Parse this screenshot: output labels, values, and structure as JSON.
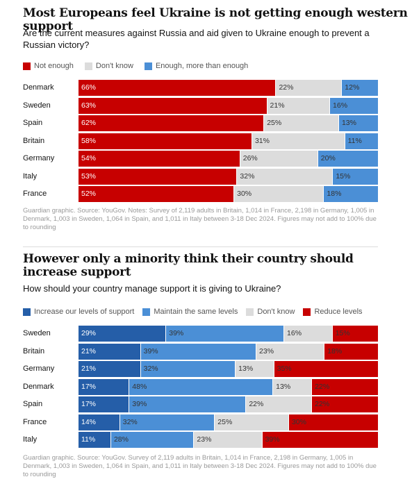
{
  "colors": {
    "not_enough": "#c70000",
    "dont_know": "#dcdcdc",
    "enough": "#4b8fd6",
    "increase": "#255ea8",
    "maintain": "#4b8fd6",
    "reduce": "#c70000"
  },
  "chart1": {
    "title": "Most Europeans feel Ukraine is not getting enough western support",
    "subtitle": "Are the current measures against Russia and aid given to Ukraine enough to prevent a Russian victory?",
    "legend": [
      "Not enough",
      "Don't know",
      "Enough, more than enough"
    ],
    "source": "Guardian graphic. Source: YouGov. Notes: Survey of 2,119 adults in Britain, 1,014 in France, 2,198 in Germany, 1,005 in Denmark, 1,003 in Sweden, 1,064 in Spain, and 1,011 in Italy between 3-18 Dec 2024. Figures may not add to 100% due to rounding"
  },
  "chart2": {
    "title": "However only a minority think their country should increase support",
    "subtitle": "How should your country manage support it is giving to Ukraine?",
    "legend": [
      "Increase our levels of support",
      "Maintain the same levels",
      "Don't know",
      "Reduce levels"
    ],
    "source": "Guardian graphic. Source: YouGov. Survey of 2,119 adults in Britain, 1,014 in France, 2,198 in Germany, 1,005 in Denmark, 1,003 in Sweden, 1,064 in Spain, and 1,011 in Italy between 3-18 Dec 2024. Figures may not add to 100% due to rounding"
  },
  "chart_data": [
    {
      "type": "bar",
      "orientation": "horizontal",
      "stacked": true,
      "title": "Most Europeans feel Ukraine is not getting enough western support",
      "subtitle": "Are the current measures against Russia and aid given to Ukraine enough to prevent a Russian victory?",
      "categories": [
        "Denmark",
        "Sweden",
        "Spain",
        "Britain",
        "Germany",
        "Italy",
        "France"
      ],
      "series": [
        {
          "name": "Not enough",
          "values": [
            66,
            63,
            62,
            58,
            54,
            53,
            52
          ]
        },
        {
          "name": "Don't know",
          "values": [
            22,
            21,
            25,
            31,
            26,
            32,
            30
          ]
        },
        {
          "name": "Enough, more than enough",
          "values": [
            12,
            16,
            13,
            11,
            20,
            15,
            18
          ]
        }
      ],
      "unit": "%",
      "legend_position": "top"
    },
    {
      "type": "bar",
      "orientation": "horizontal",
      "stacked": true,
      "title": "However only a minority think their country should increase support",
      "subtitle": "How should your country manage support it is giving to Ukraine?",
      "categories": [
        "Sweden",
        "Britain",
        "Germany",
        "Denmark",
        "Spain",
        "France",
        "Italy"
      ],
      "series": [
        {
          "name": "Increase our levels of support",
          "values": [
            29,
            21,
            21,
            17,
            17,
            14,
            11
          ]
        },
        {
          "name": "Maintain the same levels",
          "values": [
            39,
            39,
            32,
            48,
            39,
            32,
            28
          ]
        },
        {
          "name": "Don't know",
          "values": [
            16,
            23,
            13,
            13,
            22,
            25,
            23
          ]
        },
        {
          "name": "Reduce levels",
          "values": [
            15,
            18,
            35,
            22,
            22,
            30,
            39
          ]
        }
      ],
      "unit": "%",
      "legend_position": "top"
    }
  ]
}
